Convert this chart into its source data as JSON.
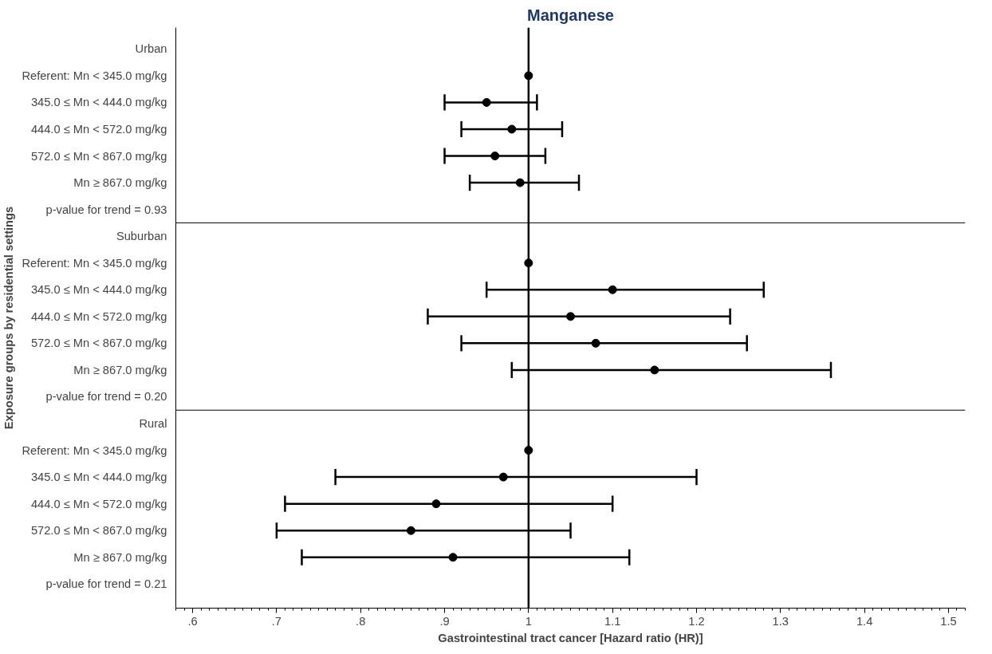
{
  "chart_data": {
    "type": "scatter",
    "orientation": "horizontal",
    "title": "Manganese",
    "xlabel": "Gastrointestinal tract cancer [Hazard ratio (HR)]",
    "ylabel": "Exposure groups by residential settings",
    "categories": [
      "Urban",
      "Referent: Mn < 345.0 mg/kg",
      "345.0 ≤ Mn < 444.0 mg/kg",
      "444.0 ≤ Mn < 572.0 mg/kg",
      "572.0 ≤ Mn < 867.0 mg/kg",
      "Mn ≥ 867.0 mg/kg",
      "p-value for trend = 0.93",
      "Suburban",
      "Referent: Mn < 345.0 mg/kg",
      "345.0 ≤ Mn < 444.0 mg/kg",
      "444.0 ≤ Mn < 572.0 mg/kg",
      "572.0 ≤ Mn < 867.0 mg/kg",
      "Mn ≥ 867.0 mg/kg",
      "p-value for trend = 0.20",
      "Rural",
      "Referent: Mn < 345.0 mg/kg",
      "345.0 ≤ Mn < 444.0 mg/kg",
      "444.0 ≤ Mn < 572.0 mg/kg",
      "572.0 ≤ Mn < 867.0 mg/kg",
      "Mn ≥ 867.0 mg/kg",
      "p-value for trend = 0.21"
    ],
    "values": [
      null,
      1.0,
      0.95,
      0.98,
      0.96,
      0.99,
      null,
      null,
      1.0,
      1.1,
      1.05,
      1.08,
      1.15,
      null,
      null,
      1.0,
      0.97,
      0.89,
      0.86,
      0.91,
      null
    ],
    "errors": [
      null,
      null,
      [
        0.9,
        1.01
      ],
      [
        0.92,
        1.04
      ],
      [
        0.9,
        1.02
      ],
      [
        0.93,
        1.06
      ],
      null,
      null,
      null,
      [
        0.95,
        1.28
      ],
      [
        0.88,
        1.24
      ],
      [
        0.92,
        1.26
      ],
      [
        0.98,
        1.36
      ],
      null,
      null,
      null,
      [
        0.77,
        1.2
      ],
      [
        0.71,
        1.1
      ],
      [
        0.7,
        1.05
      ],
      [
        0.73,
        1.12
      ],
      null
    ],
    "color": "#000000",
    "marker": "circle",
    "xlim": [
      0.58,
      1.52
    ],
    "xticks": [
      {
        "value": 0.6,
        "label": ".6"
      },
      {
        "value": 0.7,
        "label": ".7"
      },
      {
        "value": 0.8,
        "label": ".8"
      },
      {
        "value": 0.9,
        "label": ".9"
      },
      1,
      1.1,
      1.2,
      1.3,
      1.4,
      1.5
    ],
    "ref_lines": [
      {
        "axis": "x",
        "value": 1,
        "color": "#000000"
      }
    ],
    "grid": false
  }
}
